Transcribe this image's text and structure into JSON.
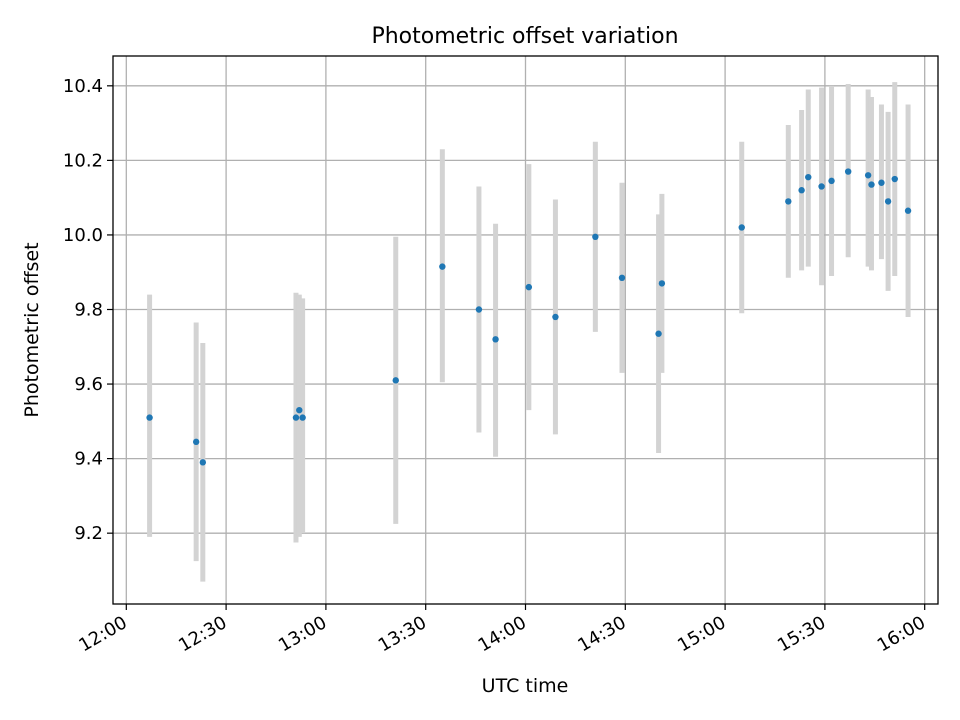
{
  "chart_data": {
    "type": "scatter",
    "title": "Photometric offset variation",
    "xlabel": "UTC time",
    "ylabel": "Photometric offset",
    "x_ticks": [
      "12:00",
      "12:30",
      "13:00",
      "13:30",
      "14:00",
      "14:30",
      "15:00",
      "15:30",
      "16:00"
    ],
    "y_ticks": [
      "9.2",
      "9.4",
      "9.6",
      "9.8",
      "10.0",
      "10.2",
      "10.4"
    ],
    "xlim": [
      "11:56",
      "16:04"
    ],
    "ylim": [
      9.01,
      10.48
    ],
    "grid": true,
    "colors": {
      "points": "#1f77b4",
      "error_bars": "#d3d3d3"
    },
    "series": [
      {
        "points": [
          {
            "x": "12:07",
            "y": 9.51,
            "ylow": 9.19,
            "yhigh": 9.84
          },
          {
            "x": "12:21",
            "y": 9.445,
            "ylow": 9.125,
            "yhigh": 9.765
          },
          {
            "x": "12:23",
            "y": 9.39,
            "ylow": 9.07,
            "yhigh": 9.71
          },
          {
            "x": "12:51",
            "y": 9.51,
            "ylow": 9.175,
            "yhigh": 9.845
          },
          {
            "x": "12:52",
            "y": 9.53,
            "ylow": 9.19,
            "yhigh": 9.84
          },
          {
            "x": "12:53",
            "y": 9.51,
            "ylow": 9.2,
            "yhigh": 9.83
          },
          {
            "x": "13:21",
            "y": 9.61,
            "ylow": 9.225,
            "yhigh": 9.995
          },
          {
            "x": "13:35",
            "y": 9.915,
            "ylow": 9.605,
            "yhigh": 10.23
          },
          {
            "x": "13:46",
            "y": 9.8,
            "ylow": 9.47,
            "yhigh": 10.13
          },
          {
            "x": "13:51",
            "y": 9.72,
            "ylow": 9.405,
            "yhigh": 10.03
          },
          {
            "x": "14:01",
            "y": 9.86,
            "ylow": 9.53,
            "yhigh": 10.19
          },
          {
            "x": "14:09",
            "y": 9.78,
            "ylow": 9.465,
            "yhigh": 10.095
          },
          {
            "x": "14:21",
            "y": 9.995,
            "ylow": 9.74,
            "yhigh": 10.25
          },
          {
            "x": "14:29",
            "y": 9.885,
            "ylow": 9.63,
            "yhigh": 10.14
          },
          {
            "x": "14:40",
            "y": 9.735,
            "ylow": 9.415,
            "yhigh": 10.055
          },
          {
            "x": "14:41",
            "y": 9.87,
            "ylow": 9.63,
            "yhigh": 10.11
          },
          {
            "x": "15:05",
            "y": 10.02,
            "ylow": 9.79,
            "yhigh": 10.25
          },
          {
            "x": "15:19",
            "y": 10.09,
            "ylow": 9.885,
            "yhigh": 10.295
          },
          {
            "x": "15:23",
            "y": 10.12,
            "ylow": 9.905,
            "yhigh": 10.335
          },
          {
            "x": "15:25",
            "y": 10.155,
            "ylow": 9.915,
            "yhigh": 10.39
          },
          {
            "x": "15:29",
            "y": 10.13,
            "ylow": 9.865,
            "yhigh": 10.395
          },
          {
            "x": "15:32",
            "y": 10.145,
            "ylow": 9.89,
            "yhigh": 10.4
          },
          {
            "x": "15:37",
            "y": 10.17,
            "ylow": 9.94,
            "yhigh": 10.405
          },
          {
            "x": "15:43",
            "y": 10.16,
            "ylow": 9.915,
            "yhigh": 10.39
          },
          {
            "x": "15:44",
            "y": 10.135,
            "ylow": 9.905,
            "yhigh": 10.37
          },
          {
            "x": "15:47",
            "y": 10.14,
            "ylow": 9.935,
            "yhigh": 10.35
          },
          {
            "x": "15:49",
            "y": 10.09,
            "ylow": 9.85,
            "yhigh": 10.33
          },
          {
            "x": "15:51",
            "y": 10.15,
            "ylow": 9.89,
            "yhigh": 10.41
          },
          {
            "x": "15:55",
            "y": 10.065,
            "ylow": 9.78,
            "yhigh": 10.35
          }
        ]
      }
    ]
  }
}
